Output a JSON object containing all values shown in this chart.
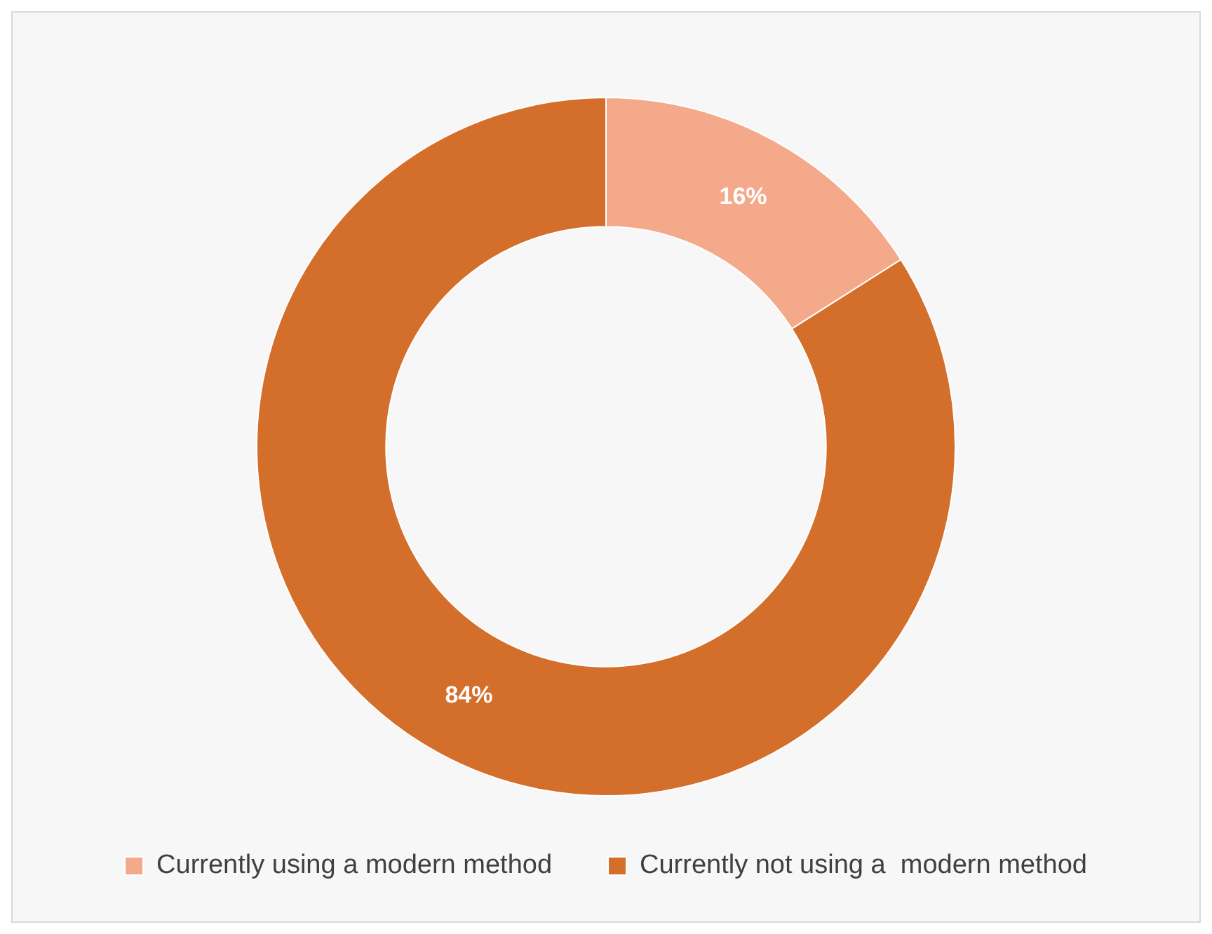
{
  "chart_data": {
    "type": "donut",
    "categories": [
      "Currently using a modern method",
      "Currently not using a  modern method"
    ],
    "values": [
      16,
      84
    ],
    "colors": [
      "#f4a98a",
      "#d46e2b"
    ],
    "value_labels": [
      "16%",
      "84%"
    ],
    "legend": "bottom"
  }
}
